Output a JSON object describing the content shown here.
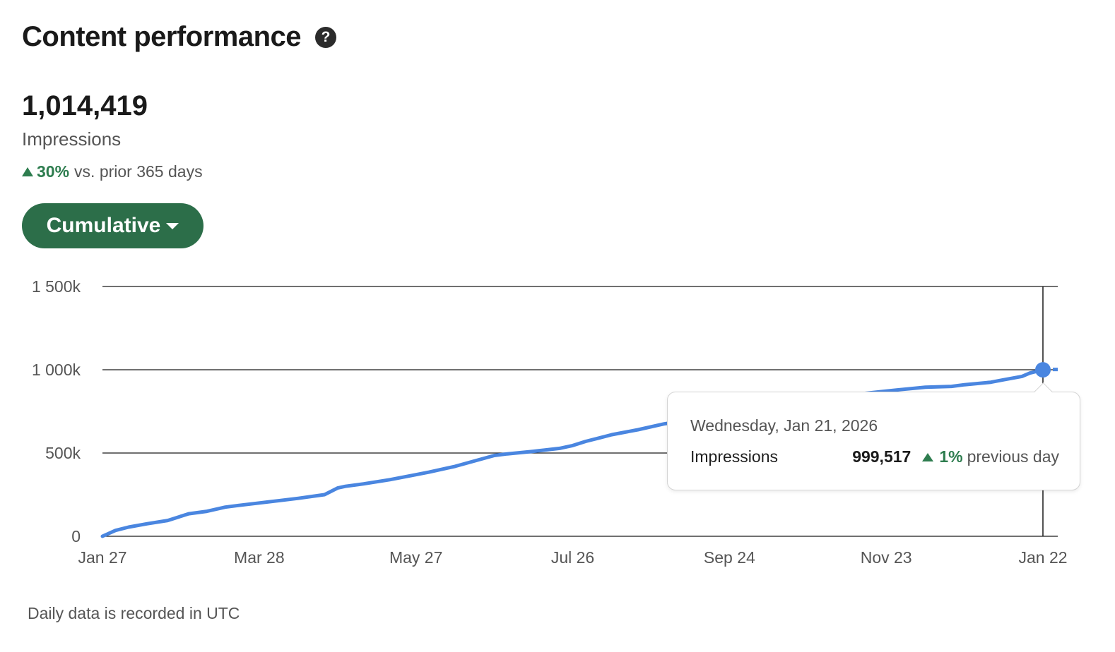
{
  "header": {
    "title": "Content performance",
    "help_icon": "question-circle-icon"
  },
  "summary": {
    "total": "1,014,419",
    "metric_label": "Impressions",
    "change_pct": "30%",
    "change_text": "vs. prior 365 days",
    "trend": "up"
  },
  "dropdown": {
    "label": "Cumulative",
    "icon": "caret-down-icon"
  },
  "tooltip": {
    "date": "Wednesday, Jan 21, 2026",
    "label": "Impressions",
    "value": "999,517",
    "change_pct": "1%",
    "change_text": "previous day"
  },
  "footnote": "Daily data is recorded in UTC",
  "colors": {
    "accent": "#2c6e49",
    "positive": "#2e7d4f",
    "line": "#4a86e0"
  },
  "chart_data": {
    "type": "line",
    "ytick_labels": [
      "0",
      "500k",
      "1 000k",
      "1 500k"
    ],
    "ytick_values": [
      0,
      500000,
      1000000,
      1500000
    ],
    "ylim": [
      0,
      1500000
    ],
    "xtick_labels": [
      "Jan 27",
      "Mar 28",
      "May 27",
      "Jul 26",
      "Sep 24",
      "Nov 23",
      "Jan 22"
    ],
    "xtick_days": [
      0,
      60,
      120,
      180,
      240,
      300,
      360
    ],
    "xlim_days": [
      0,
      360
    ],
    "grid": "horizontal",
    "series": [
      {
        "values_x_days": [
          0,
          5,
          10,
          17,
          25,
          33,
          40,
          47,
          52,
          60,
          68,
          75,
          85,
          90,
          93,
          100,
          110,
          120,
          125,
          135,
          150,
          155,
          165,
          175,
          180,
          185,
          190,
          195,
          205,
          215,
          230,
          245,
          255,
          262,
          270,
          280,
          290,
          300,
          305,
          315,
          325,
          330,
          340,
          345,
          352,
          355,
          358,
          360
        ],
        "values": [
          0,
          35000,
          55000,
          75000,
          95000,
          135000,
          150000,
          175000,
          185000,
          200000,
          215000,
          228000,
          250000,
          290000,
          300000,
          315000,
          340000,
          370000,
          385000,
          420000,
          485000,
          495000,
          510000,
          528000,
          545000,
          570000,
          590000,
          610000,
          640000,
          675000,
          710000,
          745000,
          770000,
          790000,
          810000,
          835000,
          855000,
          872000,
          880000,
          895000,
          900000,
          910000,
          925000,
          940000,
          960000,
          980000,
          992000,
          999517
        ]
      }
    ],
    "highlight": {
      "x_day": 360,
      "y": 999517
    }
  }
}
